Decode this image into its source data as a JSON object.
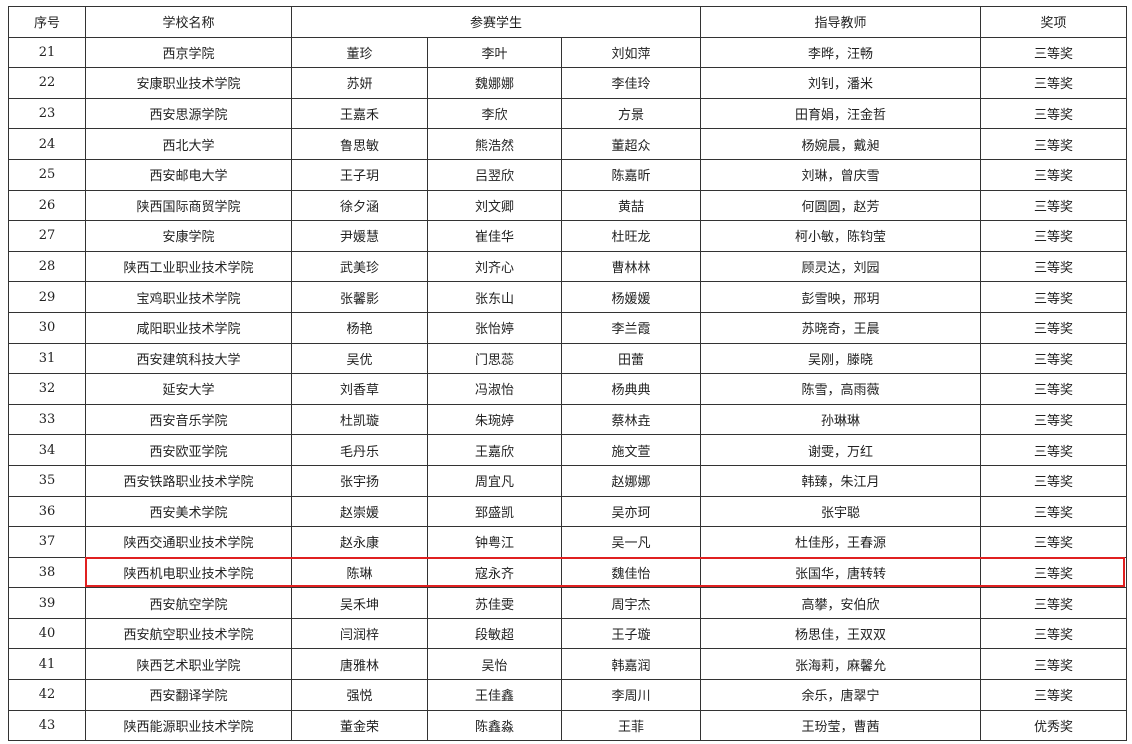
{
  "headers": {
    "index": "序号",
    "school": "学校名称",
    "students": "参赛学生",
    "teachers": "指导教师",
    "award": "奖项"
  },
  "highlight_color": "#e02020",
  "highlighted_index": "38",
  "rows": [
    {
      "index": "21",
      "school": "西京学院",
      "s1": "董珍",
      "s2": "李叶",
      "s3": "刘如萍",
      "teachers": "李晔，汪畅",
      "award": "三等奖"
    },
    {
      "index": "22",
      "school": "安康职业技术学院",
      "s1": "苏妍",
      "s2": "魏娜娜",
      "s3": "李佳玲",
      "teachers": "刘钊，潘米",
      "award": "三等奖"
    },
    {
      "index": "23",
      "school": "西安思源学院",
      "s1": "王嘉禾",
      "s2": "李欣",
      "s3": "方景",
      "teachers": "田育娟，汪金哲",
      "award": "三等奖"
    },
    {
      "index": "24",
      "school": "西北大学",
      "s1": "鲁思敏",
      "s2": "熊浩然",
      "s3": "董超众",
      "teachers": "杨婉晨，戴昶",
      "award": "三等奖"
    },
    {
      "index": "25",
      "school": "西安邮电大学",
      "s1": "王子玥",
      "s2": "吕翌欣",
      "s3": "陈嘉昕",
      "teachers": "刘琳，曾庆雪",
      "award": "三等奖"
    },
    {
      "index": "26",
      "school": "陕西国际商贸学院",
      "s1": "徐夕涵",
      "s2": "刘文卿",
      "s3": "黄喆",
      "teachers": "何圆圆，赵芳",
      "award": "三等奖"
    },
    {
      "index": "27",
      "school": "安康学院",
      "s1": "尹媛慧",
      "s2": "崔佳华",
      "s3": "杜旺龙",
      "teachers": "柯小敏，陈钧莹",
      "award": "三等奖"
    },
    {
      "index": "28",
      "school": "陕西工业职业技术学院",
      "s1": "武美珍",
      "s2": "刘齐心",
      "s3": "曹林林",
      "teachers": "顾灵达，刘园",
      "award": "三等奖"
    },
    {
      "index": "29",
      "school": "宝鸡职业技术学院",
      "s1": "张馨影",
      "s2": "张东山",
      "s3": "杨媛媛",
      "teachers": "彭雪映，邢玥",
      "award": "三等奖"
    },
    {
      "index": "30",
      "school": "咸阳职业技术学院",
      "s1": "杨艳",
      "s2": "张怡婷",
      "s3": "李兰霞",
      "teachers": "苏晓奇，王晨",
      "award": "三等奖"
    },
    {
      "index": "31",
      "school": "西安建筑科技大学",
      "s1": "吴优",
      "s2": "门思蕊",
      "s3": "田蕾",
      "teachers": "吴刚，滕晓",
      "award": "三等奖"
    },
    {
      "index": "32",
      "school": "延安大学",
      "s1": "刘香草",
      "s2": "冯淑怡",
      "s3": "杨典典",
      "teachers": "陈雪，高雨薇",
      "award": "三等奖"
    },
    {
      "index": "33",
      "school": "西安音乐学院",
      "s1": "杜凯璇",
      "s2": "朱琬婷",
      "s3": "蔡林垚",
      "teachers": "孙琳琳",
      "award": "三等奖"
    },
    {
      "index": "34",
      "school": "西安欧亚学院",
      "s1": "毛丹乐",
      "s2": "王嘉欣",
      "s3": "施文萱",
      "teachers": "谢雯，万红",
      "award": "三等奖"
    },
    {
      "index": "35",
      "school": "西安铁路职业技术学院",
      "s1": "张宇扬",
      "s2": "周宜凡",
      "s3": "赵娜娜",
      "teachers": "韩臻，朱江月",
      "award": "三等奖"
    },
    {
      "index": "36",
      "school": "西安美术学院",
      "s1": "赵崇媛",
      "s2": "郅盛凯",
      "s3": "吴亦珂",
      "teachers": "张宇聪",
      "award": "三等奖"
    },
    {
      "index": "37",
      "school": "陕西交通职业技术学院",
      "s1": "赵永康",
      "s2": "钟粤江",
      "s3": "吴一凡",
      "teachers": "杜佳彤，王春源",
      "award": "三等奖"
    },
    {
      "index": "38",
      "school": "陕西机电职业技术学院",
      "s1": "陈琳",
      "s2": "寇永齐",
      "s3": "魏佳怡",
      "teachers": "张国华，唐转转",
      "award": "三等奖"
    },
    {
      "index": "39",
      "school": "西安航空学院",
      "s1": "吴禾坤",
      "s2": "苏佳雯",
      "s3": "周宇杰",
      "teachers": "高攀，安伯欣",
      "award": "三等奖"
    },
    {
      "index": "40",
      "school": "西安航空职业技术学院",
      "s1": "闫润梓",
      "s2": "段敏超",
      "s3": "王子璇",
      "teachers": "杨思佳，王双双",
      "award": "三等奖"
    },
    {
      "index": "41",
      "school": "陕西艺术职业学院",
      "s1": "唐雅林",
      "s2": "吴怡",
      "s3": "韩嘉润",
      "teachers": "张海莉，麻馨允",
      "award": "三等奖"
    },
    {
      "index": "42",
      "school": "西安翻译学院",
      "s1": "强悦",
      "s2": "王佳鑫",
      "s3": "李周川",
      "teachers": "余乐，唐翠宁",
      "award": "三等奖"
    },
    {
      "index": "43",
      "school": "陕西能源职业技术学院",
      "s1": "董金荣",
      "s2": "陈鑫淼",
      "s3": "王菲",
      "teachers": "王玢莹，曹茜",
      "award": "优秀奖"
    }
  ]
}
